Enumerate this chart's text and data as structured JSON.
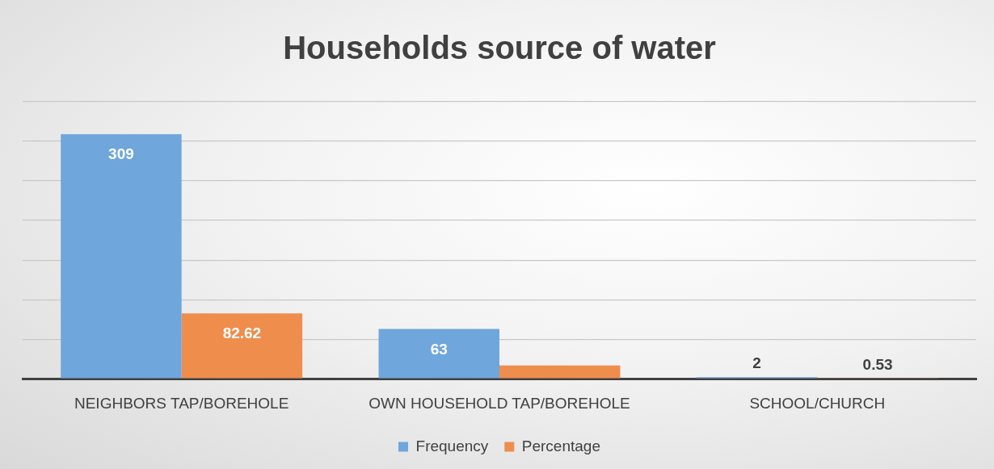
{
  "chart_data": {
    "type": "bar",
    "title": "Households source of water",
    "categories": [
      "NEIGHBORS TAP/BOREHOLE",
      "OWN HOUSEHOLD TAP/BOREHOLE",
      "SCHOOL/CHURCH"
    ],
    "series": [
      {
        "name": "Frequency",
        "color": "#6fa6db",
        "values": [
          309,
          63,
          2
        ],
        "value_labels": [
          "309",
          "63",
          "2"
        ]
      },
      {
        "name": "Percentage",
        "color": "#ef8d4d",
        "values": [
          82.62,
          16.84,
          0.53
        ],
        "value_labels": [
          "82.62",
          null,
          "0.53"
        ]
      }
    ],
    "ylim": [
      0,
      350
    ],
    "yticks": [
      {
        "value": 0,
        "label": null
      },
      {
        "value": 50,
        "label": null
      },
      {
        "value": 100,
        "label": null
      },
      {
        "value": 150,
        "label": null
      },
      {
        "value": 200,
        "label": null
      },
      {
        "value": 250,
        "label": null
      },
      {
        "value": 300,
        "label": null
      },
      {
        "value": 350,
        "label": null
      }
    ],
    "tick_labels": "x",
    "grid": "y",
    "legend": "bottom"
  }
}
